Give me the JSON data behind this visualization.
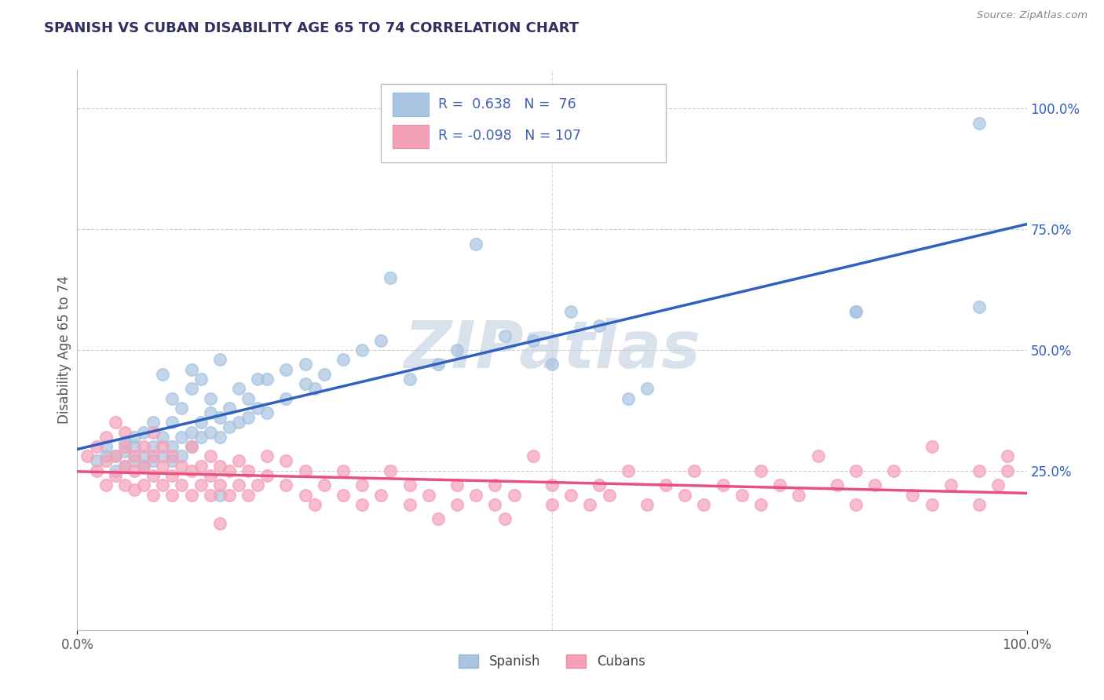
{
  "title": "SPANISH VS CUBAN DISABILITY AGE 65 TO 74 CORRELATION CHART",
  "source": "Source: ZipAtlas.com",
  "ylabel": "Disability Age 65 to 74",
  "spanish_R": 0.638,
  "spanish_N": 76,
  "cuban_R": -0.098,
  "cuban_N": 107,
  "spanish_color": "#a8c4e0",
  "cuban_color": "#f4a0b8",
  "spanish_line_color": "#3060c0",
  "cuban_line_color": "#e85080",
  "background_color": "#ffffff",
  "grid_color": "#c8c8c8",
  "title_color": "#303060",
  "legend_text_color": "#4060b0",
  "watermark_color": "#c0d0e0",
  "xlim": [
    0.0,
    1.0
  ],
  "ylim": [
    -0.08,
    1.08
  ],
  "y_ticks": [
    0.25,
    0.5,
    0.75,
    1.0
  ],
  "x_ticks": [
    0.0,
    1.0
  ],
  "spanish_scatter_x": [
    0.02,
    0.03,
    0.03,
    0.04,
    0.04,
    0.05,
    0.05,
    0.05,
    0.06,
    0.06,
    0.06,
    0.07,
    0.07,
    0.07,
    0.08,
    0.08,
    0.08,
    0.09,
    0.09,
    0.09,
    0.1,
    0.1,
    0.1,
    0.1,
    0.11,
    0.11,
    0.11,
    0.12,
    0.12,
    0.12,
    0.12,
    0.13,
    0.13,
    0.13,
    0.14,
    0.14,
    0.14,
    0.15,
    0.15,
    0.15,
    0.16,
    0.16,
    0.17,
    0.17,
    0.18,
    0.18,
    0.19,
    0.19,
    0.2,
    0.2,
    0.22,
    0.22,
    0.24,
    0.24,
    0.25,
    0.26,
    0.28,
    0.3,
    0.32,
    0.33,
    0.35,
    0.38,
    0.4,
    0.42,
    0.45,
    0.48,
    0.5,
    0.52,
    0.55,
    0.58,
    0.6,
    0.82,
    0.82,
    0.95,
    0.95,
    0.15
  ],
  "spanish_scatter_y": [
    0.27,
    0.28,
    0.3,
    0.25,
    0.28,
    0.26,
    0.29,
    0.31,
    0.27,
    0.3,
    0.32,
    0.26,
    0.28,
    0.33,
    0.27,
    0.3,
    0.35,
    0.28,
    0.32,
    0.45,
    0.27,
    0.3,
    0.35,
    0.4,
    0.28,
    0.32,
    0.38,
    0.3,
    0.33,
    0.42,
    0.46,
    0.32,
    0.35,
    0.44,
    0.33,
    0.37,
    0.4,
    0.32,
    0.36,
    0.48,
    0.34,
    0.38,
    0.35,
    0.42,
    0.36,
    0.4,
    0.38,
    0.44,
    0.37,
    0.44,
    0.4,
    0.46,
    0.43,
    0.47,
    0.42,
    0.45,
    0.48,
    0.5,
    0.52,
    0.65,
    0.44,
    0.47,
    0.5,
    0.72,
    0.53,
    0.52,
    0.47,
    0.58,
    0.55,
    0.4,
    0.42,
    0.58,
    0.58,
    0.59,
    0.97,
    0.2
  ],
  "cuban_scatter_x": [
    0.01,
    0.02,
    0.02,
    0.03,
    0.03,
    0.03,
    0.04,
    0.04,
    0.04,
    0.05,
    0.05,
    0.05,
    0.05,
    0.06,
    0.06,
    0.06,
    0.07,
    0.07,
    0.07,
    0.08,
    0.08,
    0.08,
    0.08,
    0.09,
    0.09,
    0.09,
    0.1,
    0.1,
    0.1,
    0.11,
    0.11,
    0.12,
    0.12,
    0.12,
    0.13,
    0.13,
    0.14,
    0.14,
    0.14,
    0.15,
    0.15,
    0.16,
    0.16,
    0.17,
    0.17,
    0.18,
    0.18,
    0.19,
    0.2,
    0.2,
    0.22,
    0.22,
    0.24,
    0.24,
    0.25,
    0.26,
    0.28,
    0.28,
    0.3,
    0.3,
    0.32,
    0.33,
    0.35,
    0.35,
    0.37,
    0.38,
    0.4,
    0.4,
    0.42,
    0.44,
    0.44,
    0.45,
    0.46,
    0.48,
    0.5,
    0.5,
    0.52,
    0.54,
    0.55,
    0.56,
    0.58,
    0.6,
    0.62,
    0.64,
    0.65,
    0.66,
    0.68,
    0.7,
    0.72,
    0.72,
    0.74,
    0.76,
    0.78,
    0.8,
    0.82,
    0.82,
    0.84,
    0.86,
    0.88,
    0.9,
    0.9,
    0.92,
    0.95,
    0.95,
    0.97,
    0.98,
    0.98,
    0.15
  ],
  "cuban_scatter_y": [
    0.28,
    0.25,
    0.3,
    0.22,
    0.27,
    0.32,
    0.24,
    0.28,
    0.35,
    0.22,
    0.26,
    0.3,
    0.33,
    0.21,
    0.25,
    0.28,
    0.22,
    0.26,
    0.3,
    0.2,
    0.24,
    0.28,
    0.33,
    0.22,
    0.26,
    0.3,
    0.2,
    0.24,
    0.28,
    0.22,
    0.26,
    0.2,
    0.25,
    0.3,
    0.22,
    0.26,
    0.2,
    0.24,
    0.28,
    0.22,
    0.26,
    0.2,
    0.25,
    0.22,
    0.27,
    0.2,
    0.25,
    0.22,
    0.24,
    0.28,
    0.22,
    0.27,
    0.2,
    0.25,
    0.18,
    0.22,
    0.2,
    0.25,
    0.18,
    0.22,
    0.2,
    0.25,
    0.18,
    0.22,
    0.2,
    0.15,
    0.18,
    0.22,
    0.2,
    0.18,
    0.22,
    0.15,
    0.2,
    0.28,
    0.18,
    0.22,
    0.2,
    0.18,
    0.22,
    0.2,
    0.25,
    0.18,
    0.22,
    0.2,
    0.25,
    0.18,
    0.22,
    0.2,
    0.18,
    0.25,
    0.22,
    0.2,
    0.28,
    0.22,
    0.25,
    0.18,
    0.22,
    0.25,
    0.2,
    0.18,
    0.3,
    0.22,
    0.25,
    0.18,
    0.22,
    0.25,
    0.28,
    0.14
  ]
}
